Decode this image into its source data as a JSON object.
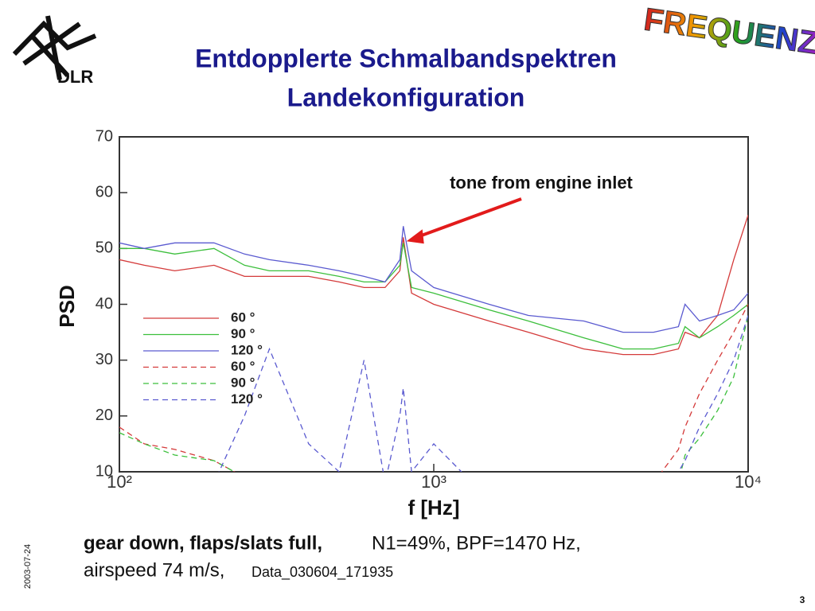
{
  "header": {
    "title_line1": "Entdopplerte Schmalbandspektren",
    "title_line2": "Landekonfiguration",
    "logo": "DLR",
    "badge": "FREQUENZ"
  },
  "chart_data": {
    "type": "line",
    "xlabel": "f [Hz]",
    "ylabel": "PSD",
    "xscale": "log",
    "xlim": [
      100,
      10000
    ],
    "ylim": [
      10,
      70
    ],
    "xticks": [
      {
        "value": 100,
        "label": "10²"
      },
      {
        "value": 1000,
        "label": "10³"
      },
      {
        "value": 10000,
        "label": "10⁴"
      }
    ],
    "yticks": [
      10,
      20,
      30,
      40,
      50,
      60,
      70
    ],
    "x": [
      100,
      120,
      150,
      200,
      250,
      300,
      400,
      500,
      600,
      700,
      780,
      800,
      850,
      1000,
      1500,
      2000,
      3000,
      4000,
      5000,
      6000,
      6300,
      7000,
      8000,
      9000,
      10000
    ],
    "series": [
      {
        "name": "60 °",
        "color": "#d43a3a",
        "dashed": false,
        "values": [
          48,
          47,
          46,
          47,
          45,
          45,
          45,
          44,
          43,
          43,
          46,
          52,
          42,
          40,
          37,
          35,
          32,
          31,
          31,
          32,
          35,
          34,
          38,
          48,
          56
        ]
      },
      {
        "name": "90 °",
        "color": "#3cbf3c",
        "dashed": false,
        "values": [
          50,
          50,
          49,
          50,
          47,
          46,
          46,
          45,
          44,
          44,
          47,
          51,
          43,
          42,
          39,
          37,
          34,
          32,
          32,
          33,
          36,
          34,
          36,
          38,
          40
        ]
      },
      {
        "name": "120 °",
        "color": "#5a5ad0",
        "dashed": false,
        "values": [
          51,
          50,
          51,
          51,
          49,
          48,
          47,
          46,
          45,
          44,
          48,
          54,
          46,
          43,
          40,
          38,
          37,
          35,
          35,
          36,
          40,
          37,
          38,
          39,
          42
        ]
      },
      {
        "name": "60 °",
        "color": "#d43a3a",
        "dashed": true,
        "values": [
          18,
          15,
          14,
          12,
          9,
          8,
          5,
          5,
          5,
          5,
          5,
          5,
          5,
          5,
          5,
          5,
          5,
          5,
          8,
          14,
          18,
          24,
          30,
          35,
          40
        ]
      },
      {
        "name": "90 °",
        "color": "#3cbf3c",
        "dashed": true,
        "values": [
          17,
          15,
          13,
          12,
          9,
          8,
          5,
          5,
          5,
          5,
          5,
          5,
          5,
          5,
          5,
          5,
          5,
          5,
          5,
          8,
          13,
          16,
          21,
          27,
          38
        ]
      },
      {
        "name": "120 °",
        "color": "#5a5ad0",
        "dashed": true,
        "values": [
          5,
          5,
          5,
          8,
          20,
          32,
          15,
          10,
          30,
          8,
          20,
          25,
          10,
          15,
          5,
          5,
          5,
          5,
          5,
          10,
          12,
          18,
          24,
          30,
          38
        ]
      }
    ],
    "annotation": {
      "text": "tone from engine inlet",
      "x": 800,
      "y": 52
    }
  },
  "caption": {
    "bold": "gear down, flaps/slats full,",
    "line1": "N1=49%, BPF=1470 Hz,",
    "line2": "airspeed 74 m/s,",
    "data_id": "Data_030604_171935"
  },
  "footer": {
    "date": "2003-07-24",
    "page": "3"
  }
}
